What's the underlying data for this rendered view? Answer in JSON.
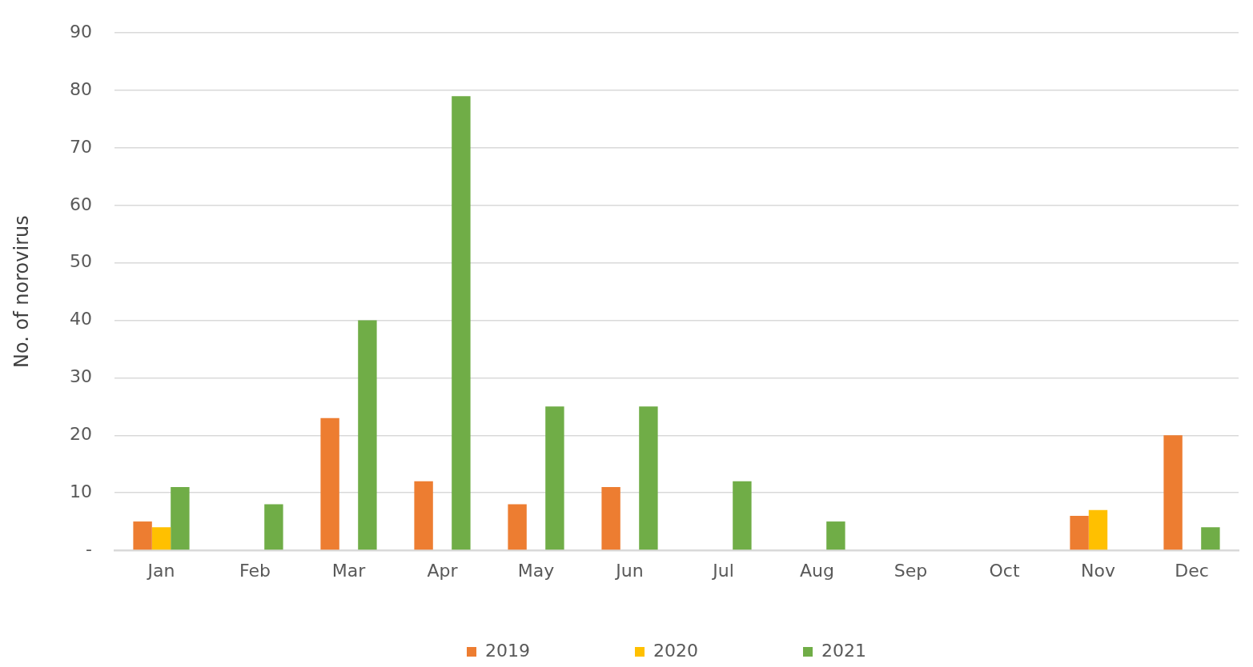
{
  "chart_data": {
    "type": "bar",
    "ylabel": "No. of norovirus",
    "categories": [
      "Jan",
      "Feb",
      "Mar",
      "Apr",
      "May",
      "Jun",
      "Jul",
      "Aug",
      "Sep",
      "Oct",
      "Nov",
      "Dec"
    ],
    "series": [
      {
        "name": "2019",
        "color": "#ed7d31",
        "values": [
          5,
          null,
          23,
          12,
          8,
          11,
          null,
          null,
          null,
          null,
          6,
          20
        ]
      },
      {
        "name": "2020",
        "color": "#ffc000",
        "values": [
          4,
          null,
          null,
          null,
          null,
          null,
          null,
          null,
          null,
          null,
          7,
          null
        ]
      },
      {
        "name": "2021",
        "color": "#70ad47",
        "values": [
          11,
          8,
          40,
          79,
          25,
          25,
          12,
          5,
          null,
          null,
          null,
          4
        ]
      }
    ],
    "ylim": [
      0,
      90
    ],
    "yticks": [
      {
        "value": 0,
        "label": "-"
      },
      10,
      20,
      30,
      40,
      50,
      60,
      70,
      80,
      90
    ],
    "grid": "y",
    "legend": "bottom"
  }
}
